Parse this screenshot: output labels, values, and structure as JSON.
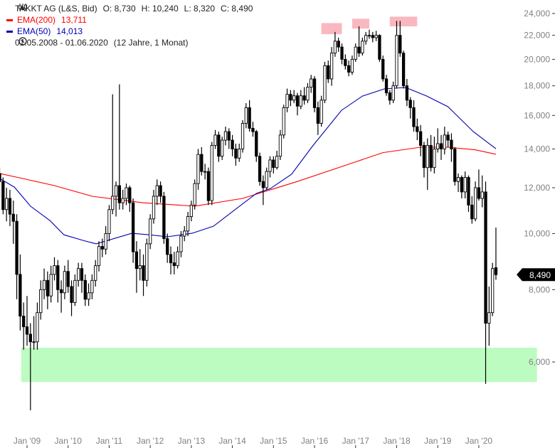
{
  "header": {
    "title": "TAKKT AG (L&S, Bid)",
    "open": "O: 8,730",
    "high": "H: 10,240",
    "low": "L: 8,320",
    "close": "C: 8,490",
    "ema200_label": "EMA(200)",
    "ema200_value": "13,711",
    "ema50_label": "EMA(50)",
    "ema50_value": "14,013",
    "range": "01.05.2008 - 01.06.2020",
    "duration": "(12 Jahre, 1 Monat)",
    "icons": {
      "title": "candlestick-icon",
      "range": "clock-icon"
    }
  },
  "colors": {
    "ema200": "#ff0000",
    "ema50": "#0000b0",
    "candle": "#000000",
    "support_zone": "#bdfcc0",
    "resistance_zone": "#f9b8c0",
    "axis_text": "#808080"
  },
  "chart_data": {
    "type": "candlestick",
    "scale": "log",
    "start_month": "2008-05",
    "interval": "monthly",
    "ylim": [
      4800,
      25000
    ],
    "y_ticks": [
      6000,
      8000,
      10000,
      12000,
      14000,
      16000,
      18000,
      20000,
      22000,
      24000
    ],
    "y_tick_labels": [
      "6,000",
      "8,000",
      "10,000",
      "12,000",
      "14,000",
      "16,000",
      "18,000",
      "20,000",
      "22,000",
      "24,000"
    ],
    "x_ticks": [
      8,
      20,
      32,
      44,
      56,
      68,
      80,
      92,
      104,
      116,
      128,
      140
    ],
    "x_tick_labels": [
      "Jan '09",
      "Jan '10",
      "Jan '11",
      "Jan '12",
      "Jan '13",
      "Jan '14",
      "Jan '15",
      "Jan '16",
      "Jan '17",
      "Jan '18",
      "Jan '19",
      "Jan '20"
    ],
    "last_price_label": "8,490",
    "last_price": 8490,
    "ohlc": [
      [
        12700,
        13000,
        11500,
        12300
      ],
      [
        12300,
        12500,
        10800,
        11000
      ],
      [
        11000,
        12000,
        10500,
        11500
      ],
      [
        11500,
        11900,
        10300,
        10800
      ],
      [
        10800,
        11400,
        9600,
        10500
      ],
      [
        10500,
        10800,
        7700,
        8500
      ],
      [
        8500,
        9200,
        6800,
        7200
      ],
      [
        7200,
        7600,
        6300,
        6900
      ],
      [
        6900,
        7800,
        6400,
        6700
      ],
      [
        6700,
        7000,
        4950,
        6500
      ],
      [
        6500,
        7200,
        6300,
        6500
      ],
      [
        6500,
        7600,
        6300,
        7300
      ],
      [
        7300,
        8300,
        7100,
        8000
      ],
      [
        8000,
        8700,
        7700,
        8300
      ],
      [
        8300,
        8600,
        7400,
        7800
      ],
      [
        7800,
        8800,
        7600,
        8500
      ],
      [
        8500,
        9100,
        8300,
        8800
      ],
      [
        8800,
        9000,
        7600,
        8000
      ],
      [
        8000,
        8300,
        7300,
        7900
      ],
      [
        7900,
        8800,
        7700,
        8600
      ],
      [
        8600,
        9000,
        7900,
        8100
      ],
      [
        8100,
        8300,
        7200,
        7600
      ],
      [
        7600,
        8500,
        7500,
        8300
      ],
      [
        8300,
        8900,
        8100,
        8700
      ],
      [
        8700,
        8900,
        7900,
        8300
      ],
      [
        8300,
        8500,
        7500,
        7700
      ],
      [
        7700,
        8200,
        7500,
        7900
      ],
      [
        7900,
        8500,
        7700,
        8300
      ],
      [
        8300,
        9000,
        8100,
        8800
      ],
      [
        8800,
        9700,
        8600,
        9500
      ],
      [
        9500,
        9800,
        9100,
        9400
      ],
      [
        9400,
        10300,
        9200,
        10000
      ],
      [
        10000,
        11200,
        9700,
        11000
      ],
      [
        11000,
        17400,
        10800,
        11600
      ],
      [
        11600,
        12300,
        10700,
        12100
      ],
      [
        12100,
        18100,
        11000,
        11300
      ],
      [
        11300,
        11900,
        11000,
        11500
      ],
      [
        11500,
        12200,
        11200,
        12000
      ],
      [
        12000,
        12100,
        10900,
        11300
      ],
      [
        11300,
        11500,
        8900,
        9300
      ],
      [
        9300,
        9700,
        7900,
        8700
      ],
      [
        8700,
        9400,
        8300,
        8800
      ],
      [
        8800,
        9200,
        7800,
        8300
      ],
      [
        8300,
        9800,
        8100,
        9600
      ],
      [
        9600,
        10800,
        9400,
        10600
      ],
      [
        10600,
        11900,
        10400,
        11600
      ],
      [
        11600,
        12400,
        11200,
        12100
      ],
      [
        12100,
        12300,
        11300,
        11600
      ],
      [
        11600,
        11800,
        9600,
        9800
      ],
      [
        9800,
        10000,
        8900,
        9200
      ],
      [
        9200,
        9500,
        8500,
        8900
      ],
      [
        8900,
        9300,
        8500,
        8800
      ],
      [
        8800,
        9500,
        8700,
        9300
      ],
      [
        9300,
        10100,
        9100,
        9900
      ],
      [
        9900,
        10300,
        9700,
        10100
      ],
      [
        10100,
        10900,
        9900,
        10700
      ],
      [
        10700,
        11400,
        10500,
        11200
      ],
      [
        11200,
        12400,
        11000,
        12200
      ],
      [
        12200,
        14000,
        11900,
        13700
      ],
      [
        13700,
        14100,
        12600,
        12800
      ],
      [
        12800,
        13200,
        12400,
        12800
      ],
      [
        12800,
        13000,
        11200,
        11400
      ],
      [
        11400,
        14400,
        11200,
        14200
      ],
      [
        14200,
        15100,
        14000,
        14800
      ],
      [
        14800,
        15000,
        13300,
        13600
      ],
      [
        13600,
        14700,
        13400,
        14500
      ],
      [
        14500,
        15300,
        14200,
        15000
      ],
      [
        15000,
        15200,
        14000,
        14500
      ],
      [
        14500,
        14800,
        13600,
        14000
      ],
      [
        14000,
        14300,
        13100,
        13500
      ],
      [
        13500,
        14300,
        13300,
        14000
      ],
      [
        14000,
        15700,
        13800,
        15500
      ],
      [
        15500,
        16800,
        15200,
        16500
      ],
      [
        16500,
        17000,
        15000,
        15200
      ],
      [
        15200,
        15600,
        14700,
        15000
      ],
      [
        15000,
        15100,
        13300,
        13600
      ],
      [
        13600,
        13800,
        12100,
        12300
      ],
      [
        12300,
        12600,
        11200,
        12000
      ],
      [
        12000,
        13000,
        11900,
        12800
      ],
      [
        12800,
        13600,
        12500,
        13400
      ],
      [
        13400,
        13600,
        12700,
        13000
      ],
      [
        13000,
        13900,
        12900,
        13600
      ],
      [
        13600,
        15100,
        13400,
        14800
      ],
      [
        14800,
        16700,
        14600,
        16500
      ],
      [
        16500,
        17800,
        16200,
        17400
      ],
      [
        17400,
        17700,
        16600,
        17000
      ],
      [
        17000,
        17700,
        16800,
        17300
      ],
      [
        17300,
        17500,
        16000,
        16600
      ],
      [
        16600,
        17700,
        16400,
        17300
      ],
      [
        17300,
        17900,
        16700,
        17000
      ],
      [
        17000,
        18200,
        16800,
        17900
      ],
      [
        17900,
        18800,
        17500,
        18500
      ],
      [
        18500,
        18700,
        16200,
        16500
      ],
      [
        16500,
        16900,
        14800,
        15500
      ],
      [
        15500,
        17300,
        15300,
        17000
      ],
      [
        17000,
        19800,
        16800,
        19500
      ],
      [
        19500,
        19900,
        18200,
        18500
      ],
      [
        18500,
        21000,
        18000,
        20500
      ],
      [
        20500,
        22300,
        20200,
        21500
      ],
      [
        21500,
        21800,
        20600,
        21000
      ],
      [
        21000,
        21300,
        19600,
        20000
      ],
      [
        20000,
        20400,
        19200,
        19500
      ],
      [
        19500,
        19900,
        18700,
        19000
      ],
      [
        19000,
        20300,
        18800,
        20000
      ],
      [
        20000,
        21300,
        19800,
        21000
      ],
      [
        21000,
        22800,
        20200,
        20500
      ],
      [
        20500,
        21800,
        20300,
        21500
      ],
      [
        21500,
        22300,
        21200,
        22000
      ],
      [
        22000,
        22500,
        21700,
        22000
      ],
      [
        22000,
        22300,
        21400,
        21800
      ],
      [
        21800,
        22400,
        21500,
        22000
      ],
      [
        22000,
        22100,
        19800,
        20000
      ],
      [
        20000,
        20300,
        18300,
        18500
      ],
      [
        18500,
        18800,
        17300,
        17500
      ],
      [
        17500,
        17700,
        16700,
        17000
      ],
      [
        17000,
        18300,
        16800,
        18000
      ],
      [
        18000,
        23300,
        17800,
        22000
      ],
      [
        22000,
        23300,
        20200,
        20500
      ],
      [
        20500,
        20700,
        17800,
        18000
      ],
      [
        18000,
        18500,
        16600,
        17000
      ],
      [
        17000,
        17200,
        15800,
        16500
      ],
      [
        16500,
        17000,
        15000,
        15300
      ],
      [
        15300,
        15800,
        14500,
        15000
      ],
      [
        15000,
        15400,
        13600,
        14200
      ],
      [
        14200,
        14400,
        12500,
        13000
      ],
      [
        13000,
        14600,
        11900,
        14200
      ],
      [
        14200,
        14800,
        12800,
        13000
      ],
      [
        13000,
        14700,
        12700,
        14000
      ],
      [
        14000,
        15200,
        13800,
        14300
      ],
      [
        14300,
        14800,
        13400,
        14000
      ],
      [
        14000,
        15300,
        13700,
        14800
      ],
      [
        14800,
        15000,
        14100,
        14500
      ],
      [
        14500,
        14900,
        13300,
        14000
      ],
      [
        14000,
        14100,
        12100,
        12300
      ],
      [
        12300,
        12700,
        11800,
        12500
      ],
      [
        12500,
        12600,
        11500,
        11800
      ],
      [
        11800,
        12800,
        11500,
        12500
      ],
      [
        12500,
        12600,
        10900,
        11200
      ],
      [
        11200,
        11600,
        10400,
        10600
      ],
      [
        10600,
        12300,
        10500,
        12000
      ],
      [
        12000,
        12900,
        11400,
        11500
      ],
      [
        11500,
        12600,
        11100,
        11800
      ],
      [
        11800,
        12300,
        5500,
        7000
      ],
      [
        7000,
        8100,
        6400,
        7300
      ],
      [
        7300,
        8900,
        7200,
        8700
      ],
      [
        8730,
        10240,
        8320,
        8490
      ]
    ],
    "series": [
      {
        "name": "EMA(200)",
        "points": [
          [
            0,
            12700
          ],
          [
            8,
            12400
          ],
          [
            16,
            12100
          ],
          [
            27,
            11600
          ],
          [
            42,
            11300
          ],
          [
            57,
            11150
          ],
          [
            71,
            11500
          ],
          [
            87,
            12300
          ],
          [
            104,
            13300
          ],
          [
            112,
            13800
          ],
          [
            123,
            14100
          ],
          [
            131,
            14100
          ],
          [
            139,
            13950
          ],
          [
            145,
            13711
          ]
        ]
      },
      {
        "name": "EMA(50)",
        "points": [
          [
            0,
            12450
          ],
          [
            4.3,
            12030
          ],
          [
            9,
            11150
          ],
          [
            14.7,
            10530
          ],
          [
            18.8,
            9950
          ],
          [
            24.4,
            9730
          ],
          [
            28.2,
            9600
          ],
          [
            38.6,
            10010
          ],
          [
            43.8,
            9950
          ],
          [
            49,
            9870
          ],
          [
            56.2,
            10010
          ],
          [
            62.5,
            10300
          ],
          [
            68.7,
            10990
          ],
          [
            75,
            11730
          ],
          [
            79.1,
            11960
          ],
          [
            85.3,
            12660
          ],
          [
            91.5,
            14180
          ],
          [
            99.9,
            16330
          ],
          [
            106,
            17280
          ],
          [
            112.4,
            17780
          ],
          [
            118.6,
            17880
          ],
          [
            124.8,
            17280
          ],
          [
            131,
            16560
          ],
          [
            138.4,
            15000
          ],
          [
            145,
            14013
          ]
        ]
      }
    ],
    "zones": [
      {
        "kind": "support",
        "from_month": 6.3,
        "to_month": 157,
        "low": 5540,
        "high": 6350
      },
      {
        "kind": "resistance",
        "from_month": 94,
        "to_month": 100,
        "low": 22100,
        "high": 23100
      },
      {
        "kind": "resistance",
        "from_month": 103,
        "to_month": 108,
        "low": 22600,
        "high": 23500
      },
      {
        "kind": "resistance",
        "from_month": 114,
        "to_month": 122,
        "low": 22800,
        "high": 23700
      }
    ]
  }
}
